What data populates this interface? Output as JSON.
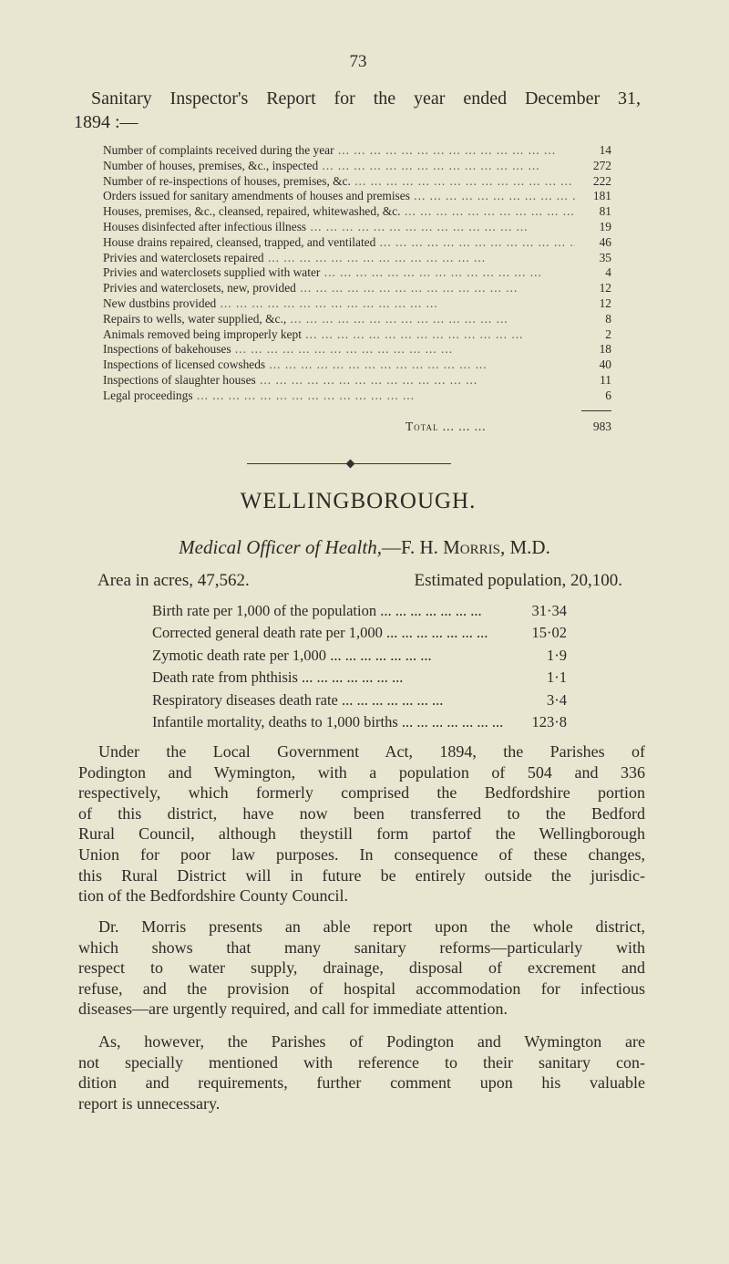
{
  "page_number": "73",
  "report_title": "Sanitary Inspector's Report for the year ended December 31,",
  "report_title_cont": "1894 :—",
  "inspector_table": [
    {
      "label": "Number of complaints received during the year",
      "value": "14"
    },
    {
      "label": "Number of houses, premises, &c., inspected",
      "value": "272"
    },
    {
      "label": "Number of re-inspections of houses, premises, &c.",
      "value": "222"
    },
    {
      "label": "Orders issued for sanitary amendments of houses and premises",
      "value": "181"
    },
    {
      "label": "Houses, premises, &c., cleansed, repaired, whitewashed, &c.",
      "value": "81"
    },
    {
      "label": "Houses disinfected after infectious illness",
      "value": "19"
    },
    {
      "label": "House drains repaired, cleansed, trapped, and ventilated",
      "value": "46"
    },
    {
      "label": "Privies and waterclosets repaired",
      "value": "35"
    },
    {
      "label": "Privies and waterclosets supplied with water",
      "value": "4"
    },
    {
      "label": "Privies and waterclosets, new, provided",
      "value": "12"
    },
    {
      "label": "New dustbins provided",
      "value": "12"
    },
    {
      "label": "Repairs to wells, water supplied, &c.,",
      "value": "8"
    },
    {
      "label": "Animals removed being improperly kept",
      "value": "2"
    },
    {
      "label": "Inspections of bakehouses",
      "value": "18"
    },
    {
      "label": "Inspections of licensed cowsheds",
      "value": "40"
    },
    {
      "label": "Inspections of slaughter houses",
      "value": "11"
    },
    {
      "label": "Legal proceedings",
      "value": "6"
    }
  ],
  "total": {
    "label": "Total",
    "value": "983"
  },
  "district_heading": "WELLINGBOROUGH.",
  "medical_officer": {
    "label": "Medical Officer of Health,",
    "name_prefix": "—F. H. ",
    "name": "Morris, M.D."
  },
  "area": "Area in acres, 47,562.",
  "population": "Estimated population, 20,100.",
  "stats": [
    {
      "label": "Birth rate per 1,000 of the population",
      "value": "31·34"
    },
    {
      "label": "Corrected general death rate per 1,000",
      "value": "15·02"
    },
    {
      "label": "Zymotic death rate per 1,000",
      "value": "1·9"
    },
    {
      "label": "Death rate from phthisis",
      "value": "1·1"
    },
    {
      "label": "Respiratory diseases death rate",
      "value": "3·4"
    },
    {
      "label": "Infantile mortality, deaths to 1,000 births",
      "value": "123·8"
    }
  ],
  "paragraphs": [
    [
      "Under the Local Government Act, 1894, the Parishes of",
      "Podington and Wymington, with a population of 504 and 336",
      "respectively, which formerly comprised the Bedfordshire portion",
      "of this district, have now been transferred to the Bedford",
      "Rural Council, although theystill form partof the Wellingborough",
      "Union for poor law purposes. In consequence of these changes,",
      "this Rural District will in future be entirely outside the jurisdic-",
      "tion of the Bedfordshire County Council."
    ],
    [
      "Dr. Morris presents an able report upon the whole district,",
      "which shows that many sanitary reforms—particularly with",
      "respect to water supply, drainage, disposal of excrement and",
      "refuse, and the provision of hospital accommodation for infectious",
      "diseases—are urgently required, and call for immediate attention."
    ],
    [
      "As, however, the Parishes of Podington and Wymington are",
      "not specially mentioned with reference to their sanitary con-",
      "dition and requirements, further comment upon his valuable",
      "report is unnecessary."
    ]
  ]
}
